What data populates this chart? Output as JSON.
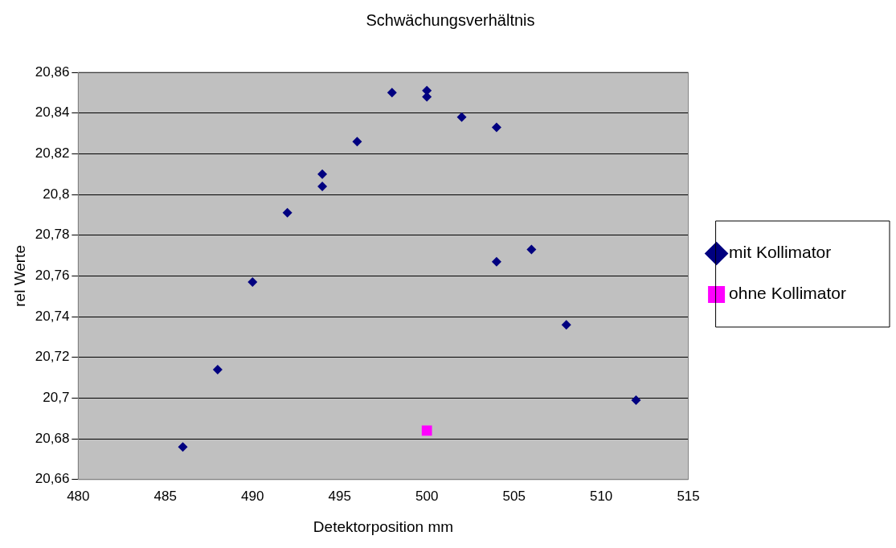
{
  "chart_data": {
    "type": "scatter",
    "title": "Schwächungsverhältnis",
    "xlabel": "Detektorposition mm",
    "ylabel": "rel Werte",
    "series": [
      {
        "name": "mit Kollimator",
        "color": "#000080",
        "marker": "diamond",
        "x": [
          486,
          488,
          490,
          492,
          494,
          494,
          496,
          498,
          500,
          500,
          502,
          504,
          504,
          506,
          508,
          512
        ],
        "values": [
          20.676,
          20.714,
          20.757,
          20.791,
          20.804,
          20.81,
          20.826,
          20.85,
          20.851,
          20.848,
          20.838,
          20.833,
          20.767,
          20.773,
          20.736,
          20.699
        ]
      },
      {
        "name": "ohne Kollimator",
        "color": "#ff00ff",
        "marker": "square",
        "x": [
          500
        ],
        "values": [
          20.684
        ]
      }
    ],
    "xlim": [
      480,
      515
    ],
    "xticks": [
      480,
      485,
      490,
      495,
      500,
      505,
      510,
      515
    ],
    "ylim": [
      20.66,
      20.86
    ],
    "yticks": [
      {
        "value": 20.66,
        "label": "20,66"
      },
      {
        "value": 20.68,
        "label": "20,68"
      },
      {
        "value": 20.7,
        "label": "20,7"
      },
      {
        "value": 20.72,
        "label": "20,72"
      },
      {
        "value": 20.74,
        "label": "20,74"
      },
      {
        "value": 20.76,
        "label": "20,76"
      },
      {
        "value": 20.78,
        "label": "20,78"
      },
      {
        "value": 20.8,
        "label": "20,8"
      },
      {
        "value": 20.82,
        "label": "20,82"
      },
      {
        "value": 20.84,
        "label": "20,84"
      },
      {
        "value": 20.86,
        "label": "20,86"
      }
    ],
    "grid": "y",
    "legend": "right"
  }
}
